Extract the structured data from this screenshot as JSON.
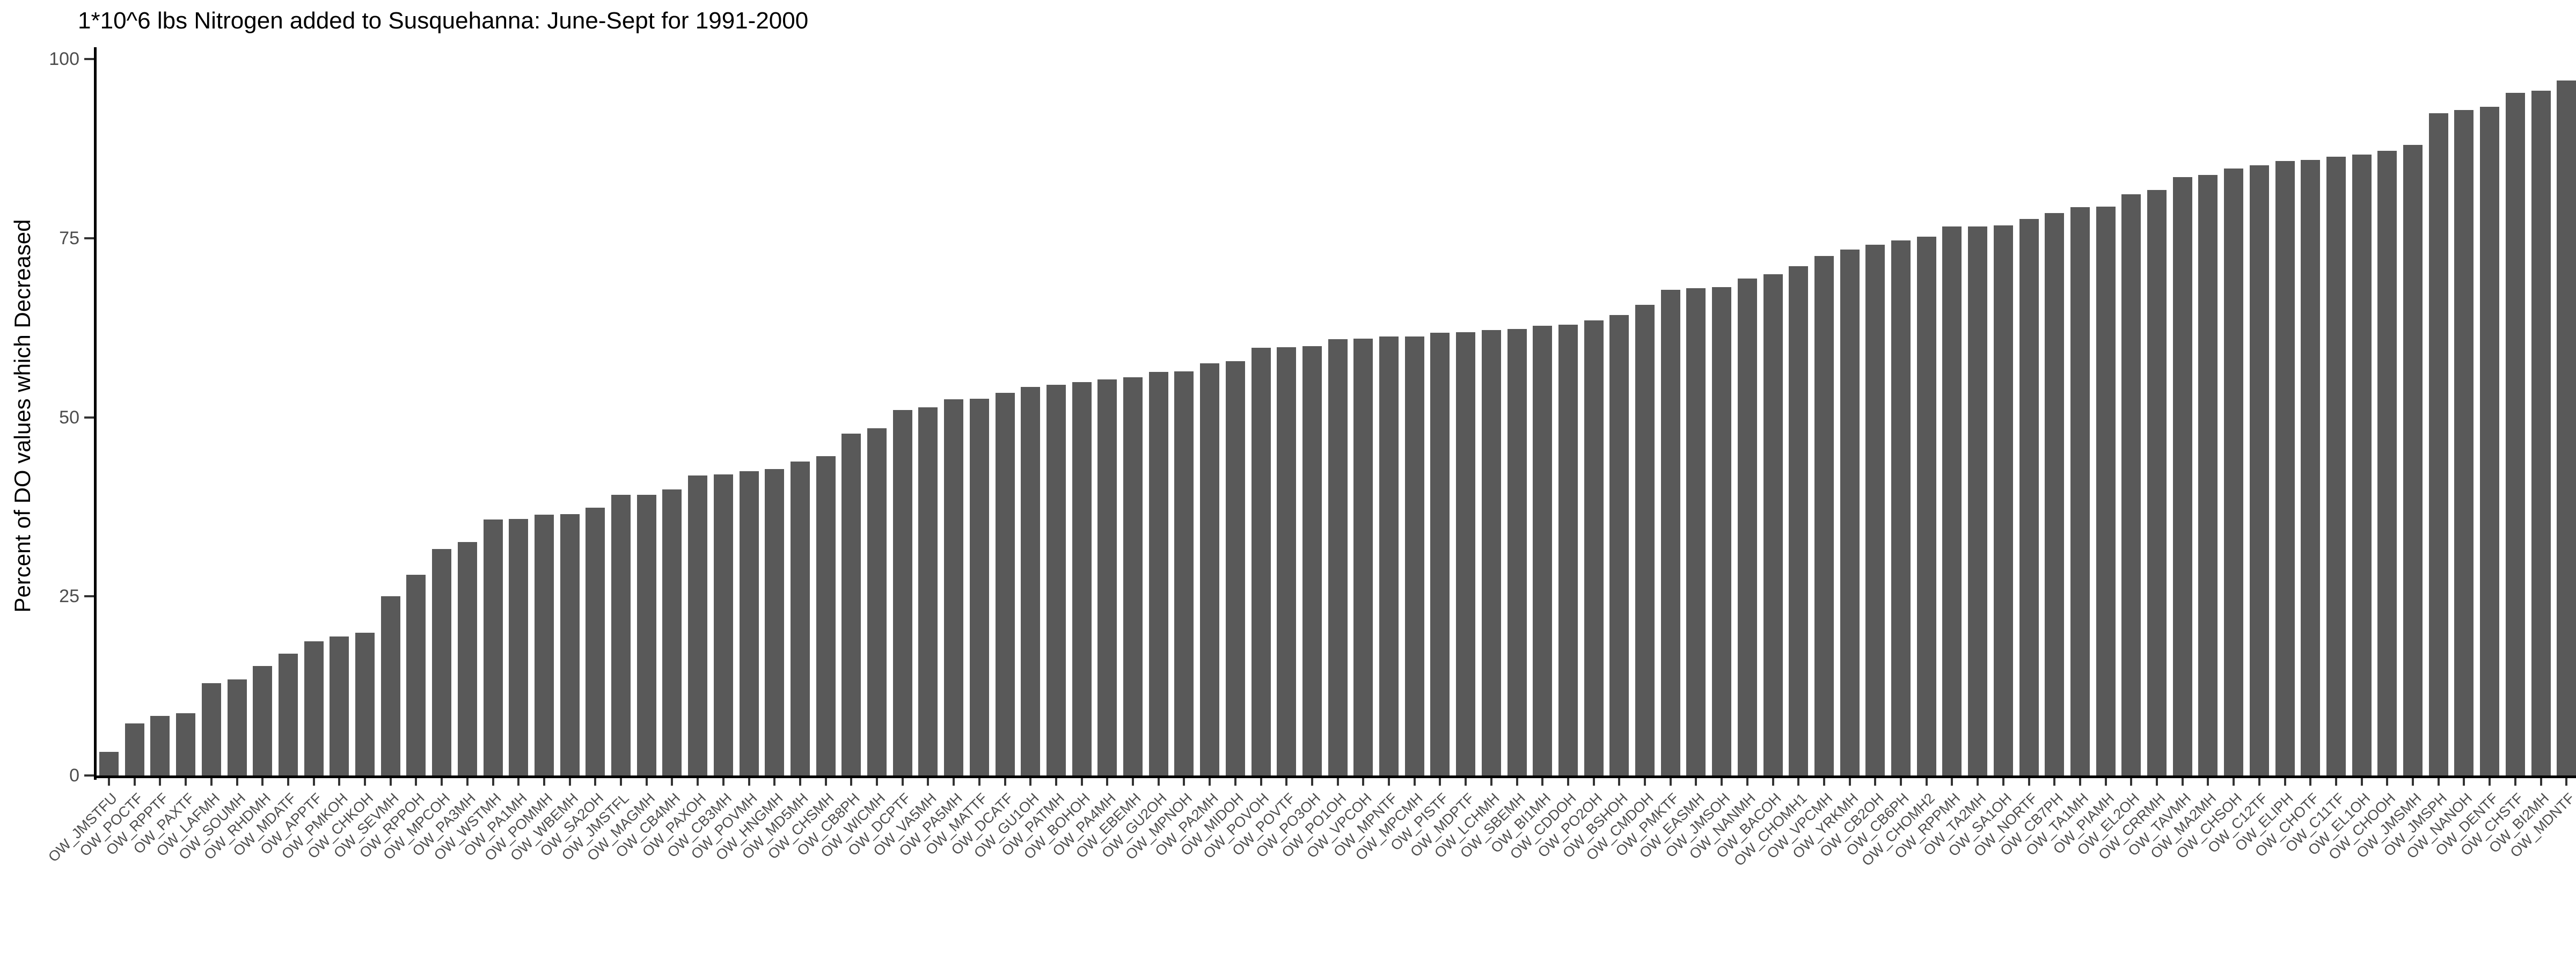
{
  "chart_data": {
    "type": "bar",
    "title": "1*10^6 lbs Nitrogen added to Susquehanna: June-Sept for 1991-2000",
    "xlabel": "",
    "ylabel": "Percent of DO values which Decreased",
    "ylim": [
      0,
      100
    ],
    "yticks": [
      0,
      25,
      50,
      75,
      100
    ],
    "grid": "off",
    "legend": "none",
    "bar_color": "#595959",
    "axis_text_color": "#4d4d4d",
    "categories": [
      "OW_JMSTFU",
      "OW_POCTF",
      "OW_RPPTF",
      "OW_PAXTF",
      "OW_LAFMH",
      "OW_SOUMH",
      "OW_RHDMH",
      "OW_MDATF",
      "OW_APPTF",
      "OW_PMKOH",
      "OW_CHKOH",
      "OW_SEVMH",
      "OW_RPPOH",
      "OW_MPCOH",
      "OW_PA3MH",
      "OW_WSTMH",
      "OW_PA1MH",
      "OW_POMMH",
      "OW_WBEMH",
      "OW_SA2OH",
      "OW_JMSTFL",
      "OW_MAGMH",
      "OW_CB4MH",
      "OW_PAXOH",
      "OW_CB3MH",
      "OW_POVMH",
      "OW_HNGMH",
      "OW_MD5MH",
      "OW_CHSMH",
      "OW_CB8PH",
      "OW_WICMH",
      "OW_DCPTF",
      "OW_VA5MH",
      "OW_PA5MH",
      "OW_MATTF",
      "OW_DCATF",
      "OW_GU1OH",
      "OW_PATMH",
      "OW_BOHOH",
      "OW_PA4MH",
      "OW_EBEMH",
      "OW_GU2OH",
      "OW_MPNOH",
      "OW_PA2MH",
      "OW_MIDOH",
      "OW_POVOH",
      "OW_POVTF",
      "OW_PO3OH",
      "OW_PO1OH",
      "OW_VPCOH",
      "OW_MPNTF",
      "OW_MPCMH",
      "OW_PISTF",
      "OW_MDPTF",
      "OW_LCHMH",
      "OW_SBEMH",
      "OW_BI1MH",
      "OW_CDDOH",
      "OW_PO2OH",
      "OW_BSHOH",
      "OW_CMDOH",
      "OW_PMKTF",
      "OW_EASMH",
      "OW_JMSOH",
      "OW_NANMH",
      "OW_BACOH",
      "OW_CHOMH1",
      "OW_VPCMH",
      "OW_YRKMH",
      "OW_CB2OH",
      "OW_CB6PH",
      "OW_CHOMH2",
      "OW_RPPMH",
      "OW_TA2MH",
      "OW_SA1OH",
      "OW_NORTF",
      "OW_CB7PH",
      "OW_TA1MH",
      "OW_PIAMH",
      "OW_EL2OH",
      "OW_CRRMH",
      "OW_TAVMH",
      "OW_MA2MH",
      "OW_CHSOH",
      "OW_C12TF",
      "OW_ELIPH",
      "OW_CHOTF",
      "OW_C11TF",
      "OW_EL1OH",
      "OW_CHOOH",
      "OW_JMSMH",
      "OW_JMSPH",
      "OW_NANOH",
      "OW_DENTF",
      "OW_CHSTF",
      "OW_BI2MH",
      "OW_MDNTF"
    ],
    "values": [
      3.3,
      7.3,
      8.3,
      8.7,
      12.9,
      13.4,
      15.3,
      17,
      18.7,
      19.4,
      19.9,
      25,
      28,
      31.6,
      32.6,
      35.7,
      35.8,
      36.4,
      36.5,
      37.4,
      39.2,
      39.2,
      39.9,
      41.9,
      42,
      42.5,
      42.8,
      43.8,
      44.6,
      47.7,
      48.5,
      51,
      51.4,
      52.5,
      52.6,
      53.4,
      54.2,
      54.5,
      54.9,
      55.3,
      55.6,
      56.3,
      56.4,
      57.5,
      57.8,
      59.7,
      59.8,
      59.9,
      60.9,
      61,
      61.3,
      61.3,
      61.8,
      61.9,
      62.2,
      62.3,
      62.8,
      62.9,
      63.5,
      64.3,
      65.7,
      67.8,
      68,
      68.2,
      69.4,
      70,
      71.1,
      72.5,
      73.4,
      74.1,
      74.7,
      75.2,
      76.6,
      76.6,
      76.8,
      77.7,
      78.5,
      79.3,
      79.4,
      81.1,
      81.7,
      83.5,
      83.8,
      84.7,
      85.2,
      85.8,
      85.9,
      86.4,
      86.7,
      87.2,
      88,
      92.4,
      92.9,
      93.3,
      95.3,
      95.6,
      97
    ]
  }
}
